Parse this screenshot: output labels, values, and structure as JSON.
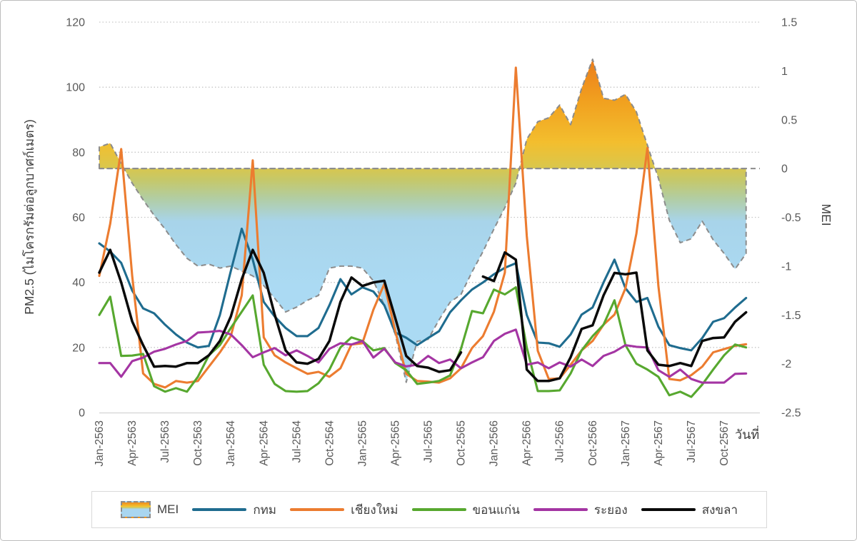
{
  "chart_data": {
    "type": "line+area",
    "description": "Monthly PM2.5 of 5 Thai provinces (left axis) vs MEI index area (right axis), Jan 2563 - Dec 2567 (2020-2024)",
    "x_axis": {
      "title": "วันที่",
      "months_total": 60,
      "tick_every_months": 3,
      "tick_labels": [
        "Jan-2563",
        "Apr-2563",
        "Jul-2563",
        "Oct-2563",
        "Jan-2564",
        "Apr-2564",
        "Jul-2564",
        "Oct-2564",
        "Jan-2565",
        "Apr-2565",
        "Jul-2565",
        "Oct-2565",
        "Jan-2566",
        "Apr-2566",
        "Jul-2566",
        "Oct-2566",
        "Jan-2567",
        "Apr-2567",
        "Jul-2567",
        "Oct-2567"
      ]
    },
    "y_left": {
      "title": "PM2.5 (ไมโครกรัมต่อลูกบาศก์เมตร)",
      "ticks": [
        0,
        20,
        40,
        60,
        80,
        100,
        120
      ],
      "range": [
        0,
        120
      ],
      "grid": "dotted"
    },
    "y_right": {
      "title": "MEI",
      "ticks": [
        1.5,
        1,
        0.5,
        0,
        -0.5,
        -1,
        -1.5,
        -2,
        -2.5
      ],
      "range": [
        -2.5,
        1.5
      ],
      "zero_line": "dashed"
    },
    "mei_area": {
      "name": "MEI",
      "border_color": "#8c8c8c",
      "gradient_top_color": "#eb791b",
      "gradient_mid_color": "#f3be2e",
      "gradient_olive_color": "#c6c868",
      "gradient_bottom_color": "#a9d7f1",
      "values": [
        0.22,
        0.26,
        0.05,
        -0.15,
        -0.32,
        -0.48,
        -0.62,
        -0.78,
        -0.92,
        -1.0,
        -0.98,
        -1.02,
        -1.0,
        -1.05,
        -1.1,
        -1.2,
        -1.33,
        -1.47,
        -1.42,
        -1.35,
        -1.3,
        -1.02,
        -1.0,
        -1.0,
        -1.02,
        -1.15,
        -1.4,
        -1.7,
        -2.19,
        -1.77,
        -1.75,
        -1.55,
        -1.37,
        -1.29,
        -1.06,
        -0.85,
        -0.62,
        -0.4,
        -0.15,
        0.3,
        0.48,
        0.52,
        0.65,
        0.45,
        0.82,
        1.12,
        0.72,
        0.7,
        0.76,
        0.58,
        0.24,
        -0.1,
        -0.53,
        -0.76,
        -0.72,
        -0.54,
        -0.73,
        -0.87,
        -1.03,
        -0.87
      ]
    },
    "series": [
      {
        "name": "กทม",
        "color": "#1f6c8f",
        "values": [
          52,
          49.5,
          46,
          37.5,
          32,
          30.5,
          27,
          24,
          21.5,
          20,
          20.5,
          30,
          43.5,
          56.5,
          47,
          34,
          29.5,
          26,
          23.5,
          23.5,
          26,
          33,
          41,
          36.3,
          38.5,
          37.2,
          33,
          24.6,
          23,
          20.7,
          22.9,
          25,
          30.8,
          34.5,
          37.8,
          40,
          42.5,
          44.5,
          45.9,
          30,
          21.5,
          21.3,
          20.2,
          24,
          30.1,
          32.3,
          40,
          47,
          38.2,
          34,
          35.2,
          26.4,
          20.7,
          19.8,
          19.1,
          22.9,
          27.9,
          29,
          32.3,
          35.2
        ]
      },
      {
        "name": "เชียงใหม่",
        "color": "#ec7c30",
        "values": [
          42,
          58,
          81,
          42,
          12,
          8.8,
          7.7,
          9.7,
          9.2,
          9.7,
          14.1,
          18.5,
          23.5,
          36,
          77.5,
          23.1,
          17.6,
          15.4,
          13.6,
          11.9,
          12.5,
          11,
          13.6,
          20.9,
          21.3,
          31.6,
          39.5,
          25,
          11.9,
          9.7,
          9.5,
          9.2,
          10.5,
          13.6,
          19.8,
          23.5,
          31,
          43,
          106,
          54.3,
          19,
          10.3,
          10.5,
          14.7,
          19.1,
          22,
          27,
          30.1,
          38.2,
          55,
          81.3,
          38.9,
          10.3,
          9.9,
          11.5,
          14.1,
          18.5,
          19.5,
          20.5,
          21
        ]
      },
      {
        "name": "ขอนแก่น",
        "color": "#57a82f",
        "values": [
          30,
          35.6,
          17.4,
          17.5,
          18,
          8.1,
          6.4,
          7.5,
          6.4,
          11,
          17.6,
          20.7,
          26,
          31,
          36,
          14.7,
          8.8,
          6.6,
          6.4,
          6.6,
          9,
          13.2,
          20,
          23.1,
          22,
          19.1,
          19.8,
          15.2,
          13,
          8.8,
          9.2,
          9.7,
          11.4,
          19.6,
          31.2,
          30.5,
          37.8,
          36.3,
          38.5,
          20,
          6.6,
          6.6,
          6.8,
          12,
          19.1,
          23.5,
          27,
          34.5,
          20.7,
          15,
          13.2,
          11,
          5.3,
          6.4,
          4.8,
          8.6,
          13.2,
          17.6,
          20.9,
          20
        ]
      },
      {
        "name": "ระยอง",
        "color": "#a435a3",
        "values": [
          15.2,
          15.2,
          11,
          15.8,
          16.9,
          18.7,
          19.6,
          20.9,
          22,
          24.6,
          24.8,
          25.1,
          24,
          20.7,
          17,
          18.5,
          19.8,
          17.6,
          19.1,
          17.4,
          15.4,
          19.6,
          21.3,
          20.9,
          22,
          16.9,
          19.6,
          15.4,
          14.2,
          14.7,
          17.4,
          15.2,
          16.3,
          13.6,
          15.4,
          17,
          22,
          24.2,
          25.5,
          14.7,
          15.4,
          13.6,
          15.4,
          14.1,
          16.3,
          14.3,
          17.4,
          18.7,
          20.7,
          20.2,
          20,
          13,
          11,
          13.2,
          10.3,
          9.2,
          9.2,
          9.2,
          11.9,
          12
        ]
      },
      {
        "name": "สงขลา",
        "color": "#0a0a0a",
        "values": [
          43,
          50,
          40,
          28,
          20.7,
          14.1,
          14.3,
          14.1,
          15.2,
          15.2,
          17.6,
          22,
          29.5,
          41,
          50,
          42.9,
          30.1,
          19.1,
          15.4,
          15,
          16.5,
          22,
          34,
          41.5,
          38.9,
          40,
          40.5,
          29,
          17.4,
          14.3,
          13.8,
          12.5,
          13,
          18.5,
          null,
          41.8,
          40.4,
          49.2,
          47,
          13.2,
          9.7,
          9.7,
          10.5,
          17,
          25.7,
          26.8,
          36,
          42.9,
          42.5,
          43,
          19.1,
          14.7,
          14.3,
          15.2,
          14.3,
          22,
          22.9,
          23.1,
          27.9,
          30.8
        ]
      }
    ],
    "legend": {
      "items": [
        {
          "label": "MEI",
          "swatch": "area"
        },
        {
          "label": "กทม",
          "swatch": "line",
          "color": "#1f6c8f"
        },
        {
          "label": "เชียงใหม่",
          "swatch": "line",
          "color": "#ec7c30"
        },
        {
          "label": "ขอนแก่น",
          "swatch": "line",
          "color": "#57a82f"
        },
        {
          "label": "ระยอง",
          "swatch": "line",
          "color": "#a435a3"
        },
        {
          "label": "สงขลา",
          "swatch": "line",
          "color": "#0a0a0a"
        }
      ],
      "position": "bottom"
    },
    "style": {
      "grid_color": "#c6c6c6",
      "axis_line_color": "#d9d9d9",
      "dashed_color": "#8c8c8c",
      "tick_text_color": "#595959"
    }
  }
}
